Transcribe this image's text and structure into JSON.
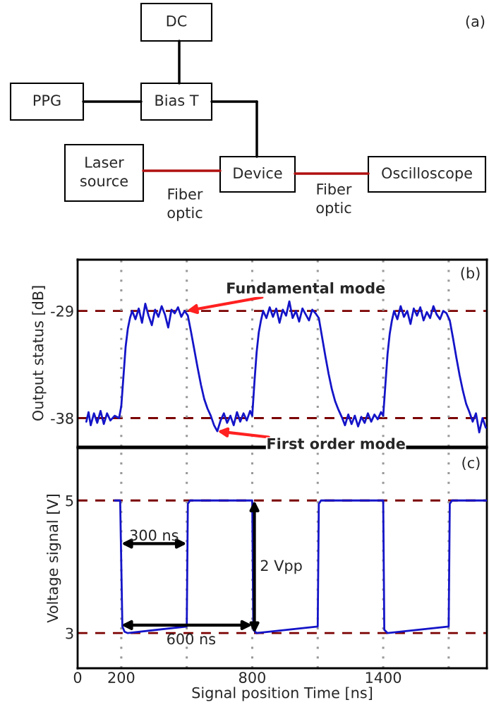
{
  "chart_data": [
    {
      "type": "other",
      "annotations": [
        "(a)",
        "DC",
        "PPG",
        "Bias T",
        "Laser\nsource",
        "Device",
        "Oscilloscope",
        "Fiber\noptic",
        "Fiber\noptic"
      ]
    },
    {
      "type": "line",
      "ylabel": "Output status [dB]",
      "xlim": [
        0,
        1875
      ],
      "ylim": [
        -40.4,
        -24.7
      ],
      "yticks": [
        -29,
        -38
      ],
      "tick_labels": "y",
      "grid": false,
      "legend": false,
      "series": [
        {
          "color": "#1414c8",
          "x": [
            40,
            50,
            60,
            75,
            90,
            105,
            120,
            135,
            150,
            170,
            190,
            200,
            210,
            220,
            230,
            240,
            250,
            265,
            280,
            295,
            310,
            325,
            340,
            355,
            370,
            385,
            400,
            415,
            430,
            445,
            460,
            475,
            490,
            505,
            520,
            535,
            550,
            565,
            580,
            595,
            610,
            625,
            640,
            655,
            670,
            685,
            700,
            715,
            730,
            745,
            760,
            775,
            790,
            800,
            810,
            820,
            830,
            840,
            850,
            865,
            880,
            895,
            910,
            925,
            940,
            955,
            970,
            985,
            1000,
            1015,
            1030,
            1045,
            1060,
            1075,
            1090,
            1105,
            1120,
            1135,
            1150,
            1165,
            1180,
            1195,
            1210,
            1225,
            1240,
            1255,
            1270,
            1285,
            1300,
            1315,
            1330,
            1345,
            1360,
            1375,
            1390,
            1400,
            1410,
            1420,
            1430,
            1440,
            1450,
            1465,
            1480,
            1495,
            1510,
            1525,
            1540,
            1555,
            1570,
            1585,
            1600,
            1615,
            1630,
            1645,
            1660,
            1675,
            1690,
            1705,
            1720,
            1735,
            1750,
            1765,
            1780,
            1795,
            1810,
            1825,
            1840,
            1855,
            1870
          ],
          "values": [
            -38.3,
            -37.5,
            -38.6,
            -37.6,
            -38.4,
            -37.4,
            -38.5,
            -37.6,
            -38.2,
            -37.8,
            -38.0,
            -37.0,
            -34.5,
            -32.0,
            -30.5,
            -29.6,
            -29.0,
            -29.7,
            -28.8,
            -30.0,
            -28.4,
            -29.4,
            -30.2,
            -28.9,
            -29.5,
            -28.6,
            -29.3,
            -30.4,
            -28.9,
            -29.2,
            -28.7,
            -29.5,
            -29.0,
            -29.4,
            -30.8,
            -32.3,
            -33.8,
            -35.2,
            -36.4,
            -37.2,
            -37.8,
            -38.6,
            -39.1,
            -38.2,
            -37.6,
            -38.4,
            -37.8,
            -38.6,
            -37.5,
            -38.3,
            -37.6,
            -38.2,
            -37.4,
            -37.8,
            -35.0,
            -32.5,
            -30.8,
            -29.8,
            -29.0,
            -29.6,
            -28.7,
            -29.5,
            -28.8,
            -30.0,
            -28.9,
            -29.4,
            -28.2,
            -29.6,
            -29.0,
            -29.9,
            -28.8,
            -29.3,
            -29.8,
            -28.9,
            -29.2,
            -29.6,
            -31.2,
            -32.8,
            -34.3,
            -35.6,
            -36.6,
            -37.3,
            -37.9,
            -38.6,
            -37.7,
            -38.5,
            -37.8,
            -38.7,
            -37.9,
            -38.4,
            -37.6,
            -38.3,
            -37.7,
            -38.1,
            -37.5,
            -37.8,
            -35.2,
            -32.6,
            -30.9,
            -29.8,
            -29.0,
            -29.7,
            -28.6,
            -29.5,
            -29.0,
            -30.1,
            -28.8,
            -29.4,
            -28.7,
            -29.8,
            -29.1,
            -29.6,
            -28.6,
            -29.3,
            -29.7,
            -29.0,
            -29.2,
            -29.8,
            -31.3,
            -32.9,
            -34.4,
            -35.7,
            -36.8,
            -37.5,
            -38.3,
            -37.6,
            -39.2,
            -38.0,
            -38.8
          ]
        }
      ],
      "ref_lines": [
        {
          "axis": "y",
          "value": -29,
          "color": "#7b0000",
          "line_style": "dashed"
        },
        {
          "axis": "y",
          "value": -38,
          "color": "#7b0000",
          "line_style": "dashed"
        },
        {
          "axis": "x",
          "value": 200,
          "color": "#999999",
          "line_style": "dotted"
        },
        {
          "axis": "x",
          "value": 500,
          "color": "#999999",
          "line_style": "dotted"
        },
        {
          "axis": "x",
          "value": 800,
          "color": "#999999",
          "line_style": "dotted"
        },
        {
          "axis": "x",
          "value": 1100,
          "color": "#999999",
          "line_style": "dotted"
        },
        {
          "axis": "x",
          "value": 1400,
          "color": "#999999",
          "line_style": "dotted"
        },
        {
          "axis": "x",
          "value": 1700,
          "color": "#999999",
          "line_style": "dotted"
        }
      ],
      "annotations": [
        "(b)",
        {
          "text": "Fundamental mode",
          "x": 500,
          "y": -29
        },
        {
          "text": "First order mode",
          "x": 640,
          "y": -39.1
        }
      ]
    },
    {
      "type": "line",
      "xlabel": "Signal position Time [ns]",
      "ylabel": "Voltage signal [V]",
      "xlim": [
        0,
        1875
      ],
      "ylim": [
        2.47,
        5.79
      ],
      "xticks": [
        0,
        200,
        800,
        1400
      ],
      "yticks": [
        3,
        5
      ],
      "grid": false,
      "legend": false,
      "series": [
        {
          "color": "#1414c8",
          "x": [
            170,
            195,
            205,
            215,
            230,
            500,
            505,
            515,
            800,
            805,
            820,
            1100,
            1105,
            1115,
            1400,
            1405,
            1420,
            1700,
            1705,
            1715,
            1875
          ],
          "values": [
            5.0,
            5.0,
            3.1,
            3.02,
            3.0,
            3.1,
            4.95,
            5.0,
            5.0,
            3.05,
            3.0,
            3.1,
            4.95,
            5.0,
            5.0,
            3.05,
            3.0,
            3.1,
            4.95,
            5.0,
            5.0
          ]
        }
      ],
      "ref_lines": [
        {
          "axis": "y",
          "value": 5,
          "color": "#7b0000",
          "line_style": "dashed"
        },
        {
          "axis": "y",
          "value": 3,
          "color": "#7b0000",
          "line_style": "dashed"
        },
        {
          "axis": "x",
          "value": 200,
          "color": "#999999",
          "line_style": "dotted"
        },
        {
          "axis": "x",
          "value": 500,
          "color": "#999999",
          "line_style": "dotted"
        },
        {
          "axis": "x",
          "value": 800,
          "color": "#999999",
          "line_style": "dotted"
        },
        {
          "axis": "x",
          "value": 1100,
          "color": "#999999",
          "line_style": "dotted"
        },
        {
          "axis": "x",
          "value": 1400,
          "color": "#999999",
          "line_style": "dotted"
        },
        {
          "axis": "x",
          "value": 1700,
          "color": "#999999",
          "line_style": "dotted"
        }
      ],
      "annotations": [
        "(c)",
        {
          "text": "300 ns",
          "x": 500,
          "y": 4.35
        },
        {
          "text": "600 ns",
          "x": 800,
          "y": 3.12
        },
        {
          "text": "2 Vpp",
          "x": 810,
          "y": 4.0
        }
      ]
    }
  ]
}
